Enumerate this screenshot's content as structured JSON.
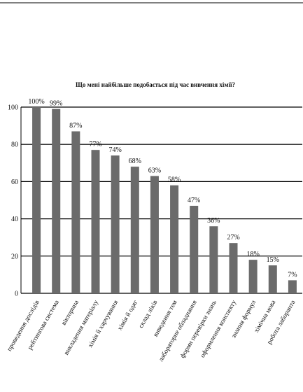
{
  "chart_data": {
    "type": "bar",
    "title": "Що мені найбільше подобається під час вивчення хімії?",
    "categories": [
      "проведення дослідів",
      "рейтингова система",
      "вікторина",
      "викладення матеріалу",
      "хімія й харчування",
      "хімія й одяг",
      "склад ліків",
      "виведення тем",
      "лабораторне обладнання",
      "форми перевірки знань",
      "оформлення конспекту",
      "знання формул",
      "хімічна мова",
      "робота лаборанта"
    ],
    "values": [
      100,
      99,
      87,
      77,
      74,
      68,
      63,
      58,
      47,
      36,
      27,
      18,
      15,
      7
    ],
    "value_labels": [
      "100%",
      "99%",
      "87%",
      "77%",
      "74%",
      "68%",
      "63%",
      "58%",
      "47%",
      "36%",
      "27%",
      "18%",
      "15%",
      "7%"
    ],
    "color": "#6b6b6b",
    "ylim": [
      0,
      100
    ],
    "yticks": [
      0,
      20,
      40,
      60,
      80,
      100
    ],
    "grid": true
  }
}
